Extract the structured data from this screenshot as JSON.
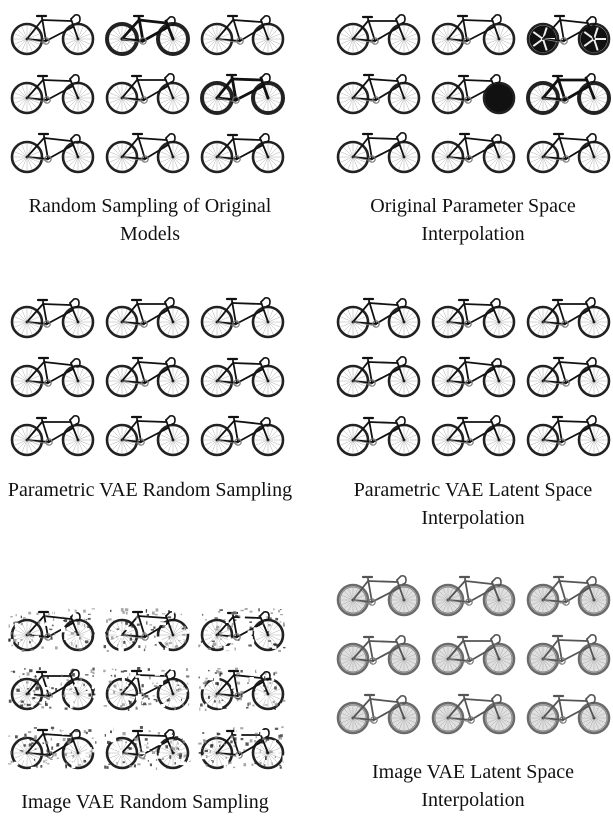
{
  "panels": [
    {
      "id": "random-original",
      "caption": "Random Sampling of Original Models",
      "bikes": [
        "road",
        "road",
        "road",
        "road",
        "road",
        "road",
        "road",
        "road",
        "road"
      ],
      "style": [
        "normal",
        "thick",
        "normal",
        "normal",
        "normal",
        "thick",
        "normal",
        "normal",
        "normal"
      ]
    },
    {
      "id": "original-interp",
      "caption": "Original Parameter Space Interpolation",
      "bikes": [
        "road",
        "road",
        "road",
        "road",
        "road",
        "road",
        "road",
        "road",
        "road"
      ],
      "style": [
        "normal",
        "normal",
        "spoke-disc",
        "normal",
        "disc-front",
        "thick",
        "normal",
        "normal",
        "normal"
      ]
    },
    {
      "id": "parametric-random",
      "caption": "Parametric VAE Random Sampling",
      "bikes": [
        "road",
        "road",
        "road",
        "road",
        "road",
        "road",
        "road",
        "road",
        "road"
      ],
      "style": [
        "normal",
        "normal",
        "normal",
        "normal",
        "normal",
        "normal",
        "normal",
        "normal",
        "normal"
      ]
    },
    {
      "id": "parametric-interp",
      "caption": "Parametric VAE Latent Space Interpolation",
      "bikes": [
        "road",
        "road",
        "road",
        "road",
        "road",
        "road",
        "road",
        "road",
        "road"
      ],
      "style": [
        "normal",
        "normal",
        "normal",
        "normal",
        "normal",
        "normal",
        "normal",
        "normal",
        "normal"
      ]
    },
    {
      "id": "image-random",
      "caption": "Image VAE Random Sampling",
      "bikes": [
        "road",
        "road",
        "road",
        "road",
        "road",
        "road",
        "road",
        "road",
        "road"
      ],
      "style": [
        "noisy",
        "noisy",
        "noisy",
        "noisy",
        "noisy",
        "noisy",
        "noisy",
        "noisy",
        "noisy"
      ]
    },
    {
      "id": "image-interp",
      "caption": "Image VAE Latent Space Interpolation",
      "bikes": [
        "road",
        "road",
        "road",
        "road",
        "road",
        "road",
        "road",
        "road",
        "road"
      ],
      "style": [
        "blurry",
        "blurry",
        "blurry",
        "blurry",
        "blurry",
        "blurry",
        "blurry",
        "blurry",
        "blurry"
      ]
    }
  ]
}
